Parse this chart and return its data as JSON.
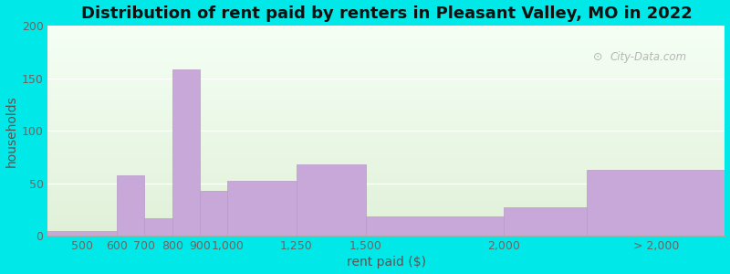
{
  "title": "Distribution of rent paid by renters in Pleasant Valley, MO in 2022",
  "xlabel": "rent paid ($)",
  "ylabel": "households",
  "bar_color": "#c8a8d8",
  "bar_edgecolor": "#b898c8",
  "background_outer": "#00e8e8",
  "background_inner_top": "#e0f0d8",
  "background_inner_bottom": "#f5fff5",
  "ylim": [
    0,
    200
  ],
  "yticks": [
    0,
    50,
    100,
    150,
    200
  ],
  "title_fontsize": 13,
  "axis_label_fontsize": 10,
  "tick_fontsize": 9,
  "watermark": "City-Data.com",
  "bin_lefts": [
    350,
    600,
    700,
    800,
    900,
    1000,
    1250,
    1500,
    2000,
    2300
  ],
  "bin_rights": [
    600,
    700,
    800,
    900,
    1000,
    1250,
    1500,
    2000,
    2300,
    2800
  ],
  "values": [
    5,
    58,
    17,
    158,
    43,
    52,
    68,
    19,
    27,
    63
  ],
  "tick_positions": [
    475,
    600,
    700,
    800,
    900,
    1000,
    1250,
    1500,
    2000,
    2550
  ],
  "tick_labels": [
    "500",
    "600",
    "700",
    "800",
    "900",
    "1,000",
    "1,250",
    "1,500",
    "2,000",
    "> 2,000"
  ]
}
